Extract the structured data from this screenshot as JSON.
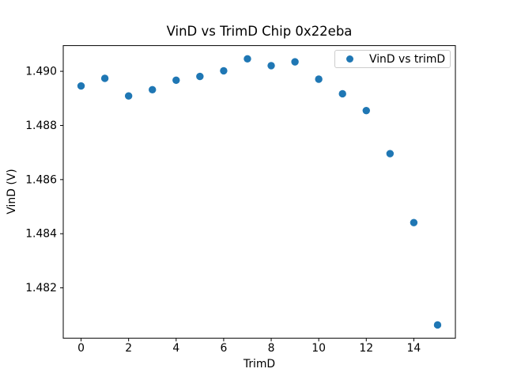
{
  "figure": {
    "background": "#ffffff",
    "text_color": "#000000",
    "spine_color": "#000000"
  },
  "chart_data": {
    "type": "scatter",
    "title": "VinD vs TrimD Chip 0x22eba",
    "xlabel": "TrimD",
    "ylabel": "VinD (V)",
    "legend": {
      "entries": [
        "VinD vs trimD"
      ],
      "position": "upper right"
    },
    "grid": false,
    "marker_color": "#1f77b4",
    "x": [
      0,
      1,
      2,
      3,
      4,
      5,
      6,
      7,
      8,
      9,
      10,
      11,
      12,
      13,
      14,
      15
    ],
    "y": [
      1.48946,
      1.48974,
      1.48909,
      1.48932,
      1.48967,
      1.48981,
      1.49002,
      1.49046,
      1.49021,
      1.49035,
      1.48971,
      1.48917,
      1.48855,
      1.48696,
      1.48441,
      1.48063
    ],
    "xlim": [
      -0.75,
      15.75
    ],
    "ylim": [
      1.48014,
      1.49095
    ],
    "x_ticks": [
      0,
      2,
      4,
      6,
      8,
      10,
      12,
      14
    ],
    "x_tick_labels": [
      "0",
      "2",
      "4",
      "6",
      "8",
      "10",
      "12",
      "14"
    ],
    "y_ticks": [
      1.482,
      1.484,
      1.486,
      1.488,
      1.49
    ],
    "y_tick_labels": [
      "1.482",
      "1.484",
      "1.486",
      "1.488",
      "1.490"
    ]
  }
}
